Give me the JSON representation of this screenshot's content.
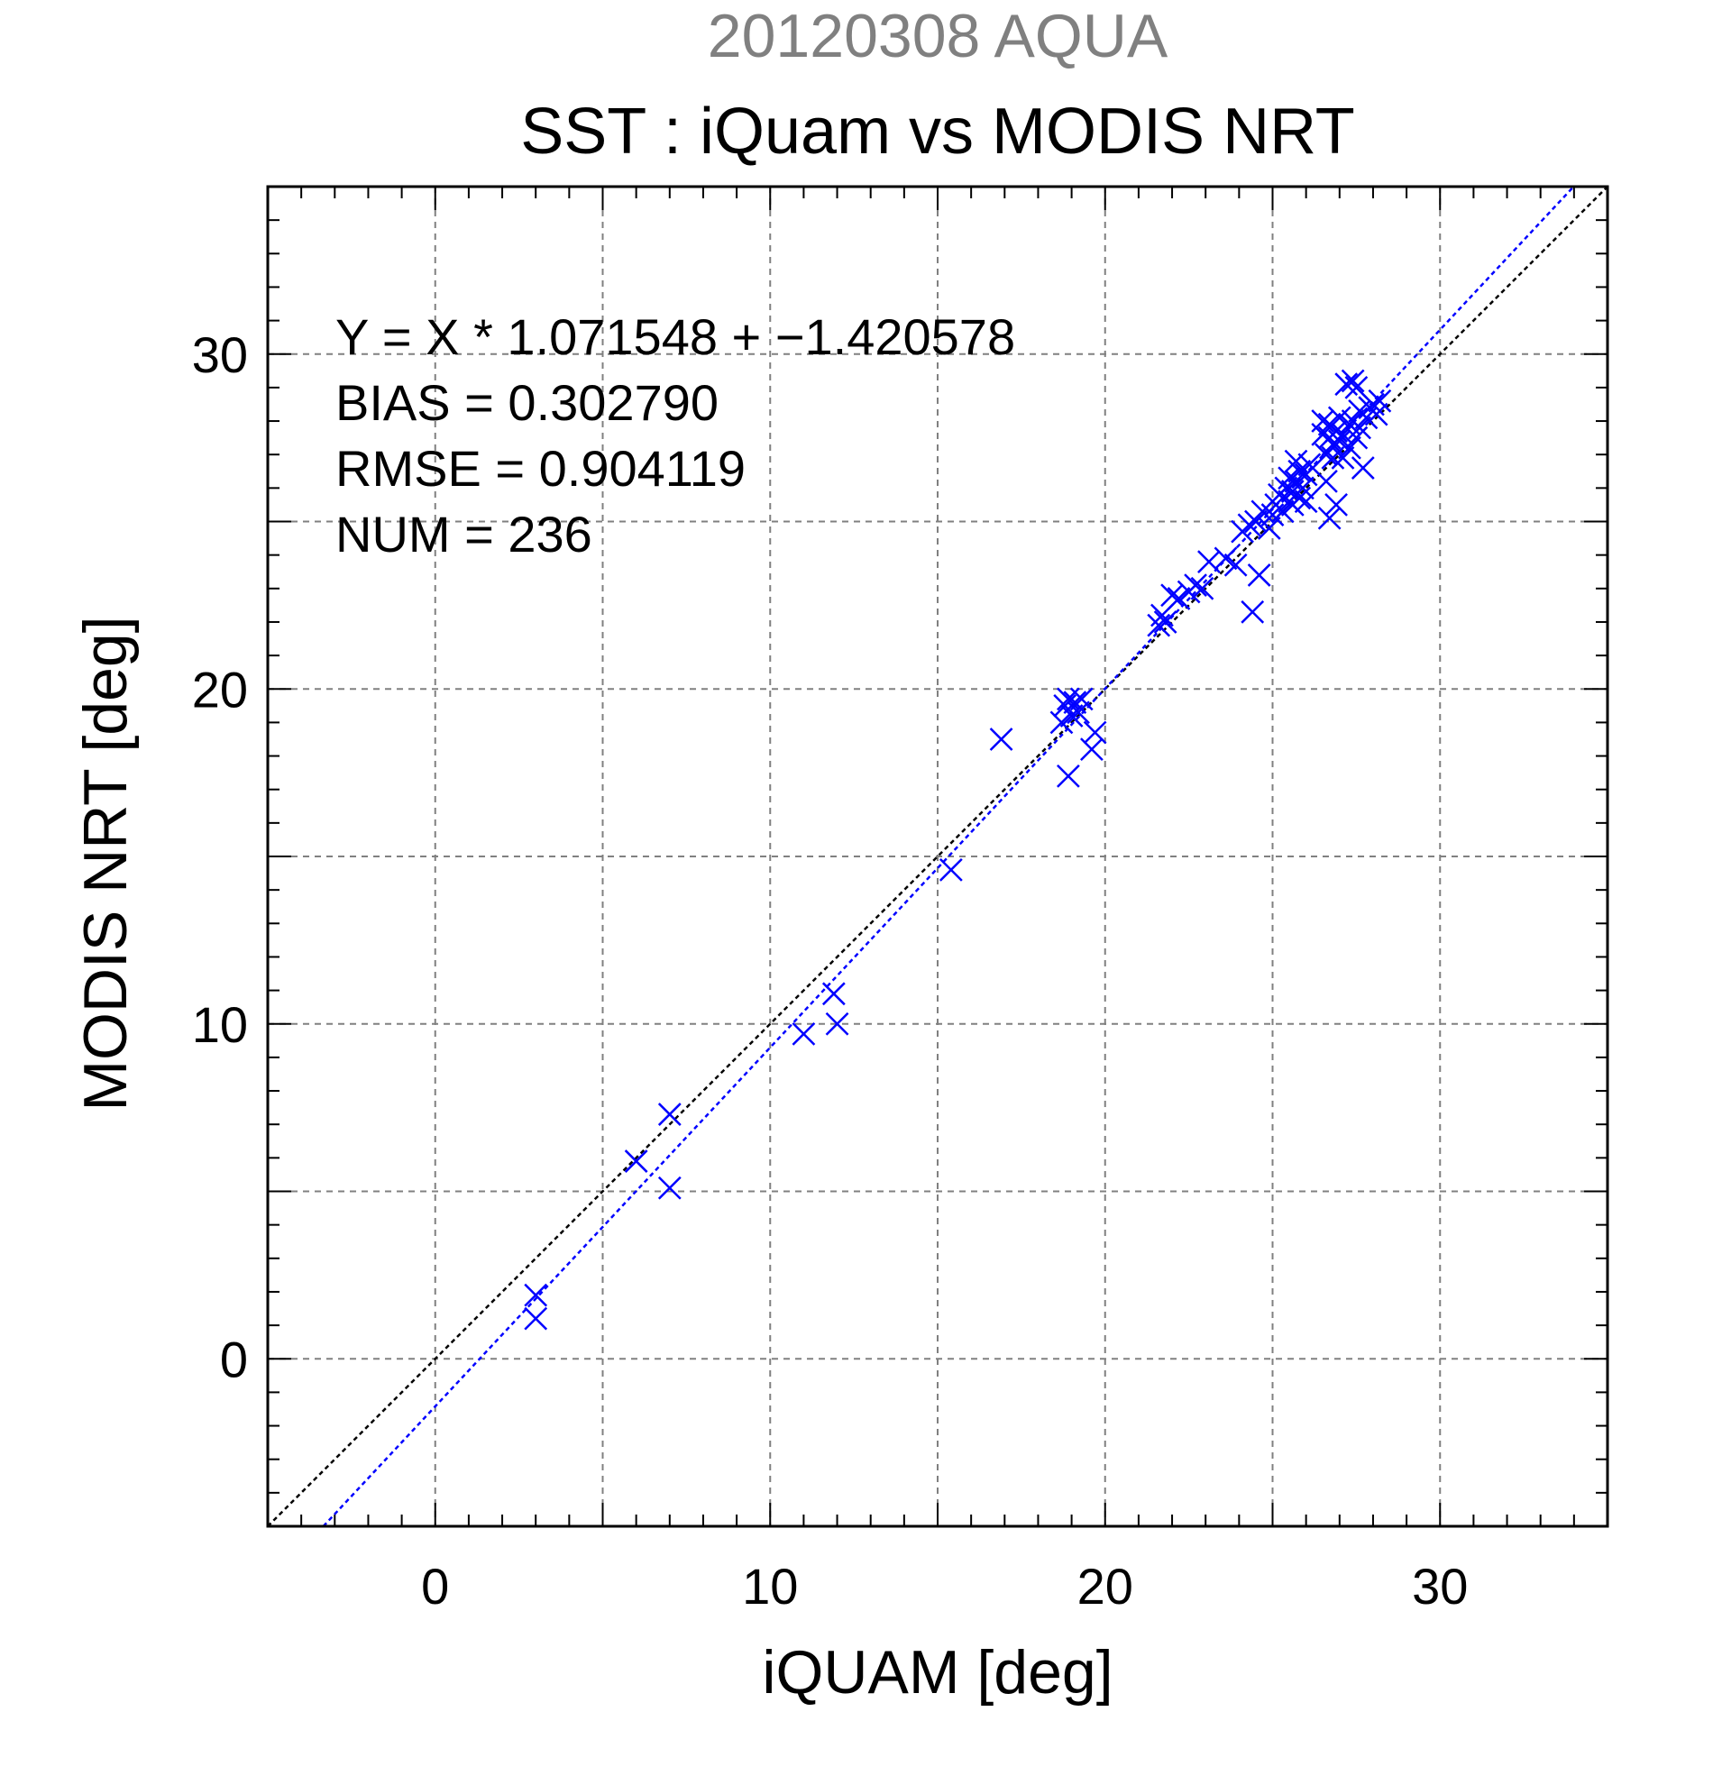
{
  "chart_data": {
    "type": "scatter",
    "supertitle": "20120308 AQUA",
    "title": "SST : iQuam vs MODIS NRT",
    "xlabel": "iQUAM [deg]",
    "ylabel": "MODIS NRT [deg]",
    "xlim": [
      -5,
      35
    ],
    "ylim": [
      -5,
      35
    ],
    "xticks": [
      0,
      10,
      20,
      30
    ],
    "yticks": [
      0,
      10,
      20,
      30
    ],
    "grid": true,
    "annotations": [
      "Y = X * 1.071548 + −1.420578",
      "BIAS = 0.302790",
      "RMSE = 0.904119",
      "NUM = 236"
    ],
    "reference_line": {
      "name": "1:1",
      "slope": 1,
      "intercept": 0,
      "color": "#000000"
    },
    "fit_line": {
      "slope": 1.071548,
      "intercept": -1.420578,
      "color": "#0000ff"
    },
    "marker": "x",
    "marker_color": "#0000ff",
    "series": [
      {
        "points": [
          [
            3.0,
            1.2
          ],
          [
            3.0,
            1.9
          ],
          [
            6.0,
            5.9
          ],
          [
            7.0,
            7.3
          ],
          [
            7.0,
            5.1
          ],
          [
            11.0,
            9.7
          ],
          [
            11.9,
            10.9
          ],
          [
            12.0,
            10.0
          ],
          [
            15.4,
            14.6
          ],
          [
            16.9,
            18.5
          ],
          [
            18.7,
            19.0
          ],
          [
            18.8,
            19.5
          ],
          [
            18.9,
            19.7
          ],
          [
            19.0,
            19.2
          ],
          [
            18.9,
            17.4
          ],
          [
            19.1,
            19.6
          ],
          [
            19.2,
            19.3
          ],
          [
            19.3,
            19.7
          ],
          [
            19.6,
            18.2
          ],
          [
            19.7,
            18.7
          ],
          [
            21.6,
            21.9
          ],
          [
            21.7,
            22.2
          ],
          [
            21.8,
            22.0
          ],
          [
            22.0,
            22.8
          ],
          [
            22.2,
            22.7
          ],
          [
            22.5,
            22.9
          ],
          [
            22.7,
            23.1
          ],
          [
            22.9,
            23.0
          ],
          [
            23.1,
            23.8
          ],
          [
            23.6,
            23.9
          ],
          [
            23.9,
            23.7
          ],
          [
            24.1,
            24.7
          ],
          [
            24.3,
            24.9
          ],
          [
            24.4,
            22.3
          ],
          [
            24.5,
            25.0
          ],
          [
            24.6,
            23.4
          ],
          [
            24.7,
            25.3
          ],
          [
            24.9,
            24.8
          ],
          [
            25.0,
            25.2
          ],
          [
            25.1,
            25.5
          ],
          [
            25.2,
            25.8
          ],
          [
            25.3,
            25.3
          ],
          [
            25.4,
            26.0
          ],
          [
            25.5,
            25.6
          ],
          [
            25.5,
            26.3
          ],
          [
            25.6,
            25.9
          ],
          [
            25.6,
            25.5
          ],
          [
            25.7,
            26.2
          ],
          [
            25.7,
            26.8
          ],
          [
            25.8,
            25.7
          ],
          [
            25.8,
            26.5
          ],
          [
            25.9,
            26.0
          ],
          [
            26.0,
            25.6
          ],
          [
            26.0,
            26.4
          ],
          [
            26.1,
            26.7
          ],
          [
            26.5,
            27.6
          ],
          [
            26.5,
            28.0
          ],
          [
            26.6,
            27.0
          ],
          [
            26.6,
            26.2
          ],
          [
            26.7,
            27.5
          ],
          [
            26.7,
            27.9
          ],
          [
            26.7,
            25.1
          ],
          [
            26.8,
            27.3
          ],
          [
            26.8,
            26.9
          ],
          [
            26.9,
            25.5
          ],
          [
            26.9,
            27.7
          ],
          [
            27.0,
            27.4
          ],
          [
            27.0,
            28.1
          ],
          [
            27.1,
            26.9
          ],
          [
            27.1,
            27.6
          ],
          [
            27.2,
            29.1
          ],
          [
            27.3,
            27.2
          ],
          [
            27.3,
            27.9
          ],
          [
            27.4,
            29.2
          ],
          [
            27.4,
            28.0
          ],
          [
            27.5,
            27.5
          ],
          [
            27.5,
            29.0
          ],
          [
            27.6,
            27.8
          ],
          [
            27.6,
            28.3
          ],
          [
            27.7,
            26.6
          ],
          [
            27.8,
            28.1
          ],
          [
            27.9,
            28.4
          ],
          [
            28.0,
            28.5
          ],
          [
            28.1,
            28.2
          ],
          [
            28.2,
            28.6
          ]
        ]
      }
    ]
  }
}
